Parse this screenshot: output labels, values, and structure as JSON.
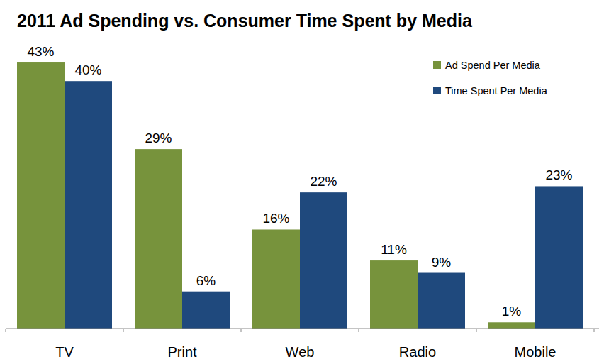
{
  "chart_data": {
    "type": "bar",
    "title": "2011 Ad Spending vs. Consumer Time Spent by Media",
    "categories": [
      "TV",
      "Print",
      "Web",
      "Radio",
      "Mobile"
    ],
    "series": [
      {
        "name": "Ad Spend Per Media",
        "color": "#77933c",
        "values": [
          43,
          29,
          16,
          11,
          1
        ],
        "value_labels": [
          "43%",
          "29%",
          "16%",
          "11%",
          "1%"
        ]
      },
      {
        "name": "Time Spent Per Media",
        "color": "#1f497d",
        "values": [
          40,
          6,
          22,
          9,
          23
        ],
        "value_labels": [
          "40%",
          "6%",
          "22%",
          "9%",
          "23%"
        ]
      }
    ],
    "ylim": [
      0,
      45
    ],
    "data_labels": true,
    "tick_labels": "x",
    "legend": "top-right",
    "grid": false
  }
}
